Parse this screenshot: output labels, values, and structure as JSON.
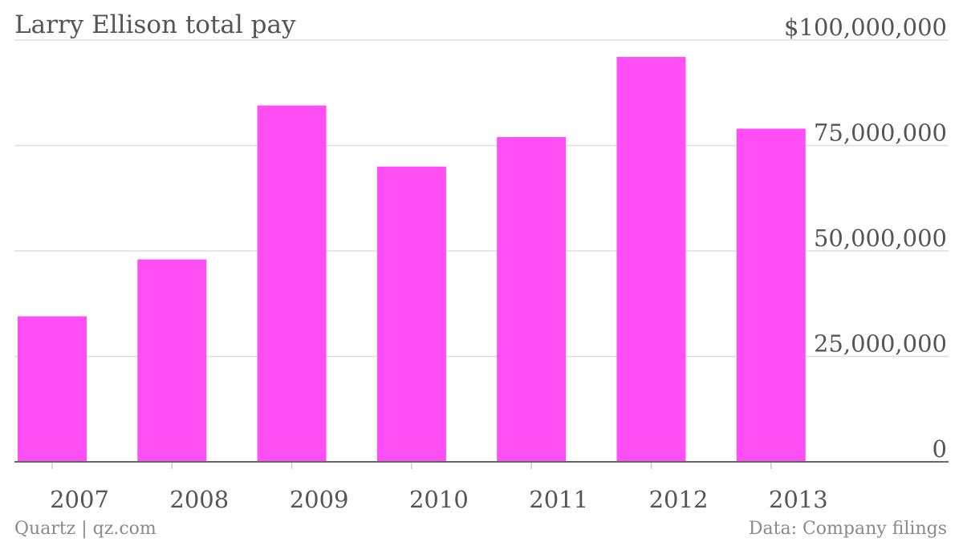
{
  "title": "Larry Ellison total pay",
  "footer": {
    "source_left": "Quartz | qz.com",
    "source_right": "Data: Company filings"
  },
  "colors": {
    "bar": "#ff4ef4",
    "grid": "#dddddd",
    "axis": "#666666",
    "text": "#555555"
  },
  "chart_data": {
    "type": "bar",
    "title": "Larry Ellison total pay",
    "categories": [
      "2007",
      "2008",
      "2009",
      "2010",
      "2011",
      "2012",
      "2013"
    ],
    "values": [
      34500000,
      48000000,
      84500000,
      70000000,
      77000000,
      96000000,
      79000000
    ],
    "ylim": [
      0,
      100000000
    ],
    "yticks": [
      0,
      25000000,
      50000000,
      75000000,
      100000000
    ],
    "ytick_labels": [
      "0",
      "25,000,000",
      "50,000,000",
      "75,000,000",
      "$100,000,000"
    ],
    "xlabel": "",
    "ylabel": "",
    "grid": true,
    "y_axis_position": "right"
  }
}
